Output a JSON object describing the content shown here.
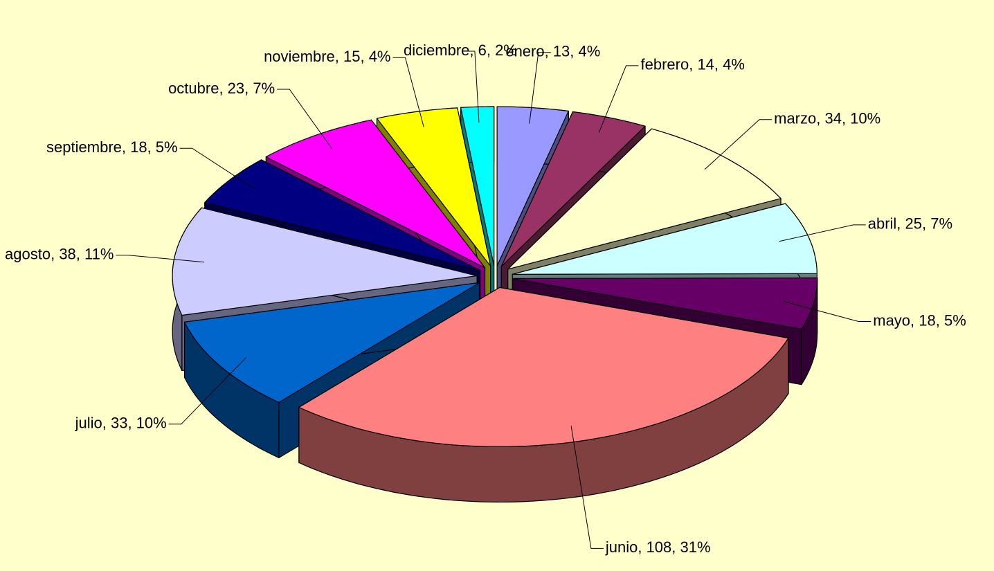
{
  "chart_data": {
    "type": "pie",
    "categories": [
      "enero",
      "febrero",
      "marzo",
      "abril",
      "mayo",
      "junio",
      "julio",
      "agosto",
      "septiembre",
      "octubre",
      "noviembre",
      "diciembre"
    ],
    "values": [
      13,
      14,
      34,
      25,
      18,
      108,
      33,
      38,
      18,
      23,
      15,
      6
    ],
    "value_labels": [
      "enero, 13, 4%",
      "febrero, 14, 4%",
      "marzo, 34, 10%",
      "abril, 25, 7%",
      "mayo, 18, 5%",
      "junio, 108, 31%",
      "julio, 33, 10%",
      "agosto, 38, 11%",
      "septiembre, 18, 5%",
      "octubre, 23, 7%",
      "noviembre, 15, 4%",
      "diciembre, 6, 2%"
    ],
    "colors": [
      "#9999ff",
      "#993366",
      "#ffffcc",
      "#ccffff",
      "#660066",
      "#ff8080",
      "#0066cc",
      "#ccccff",
      "#000080",
      "#ff00ff",
      "#ffff00",
      "#00ffff"
    ]
  }
}
